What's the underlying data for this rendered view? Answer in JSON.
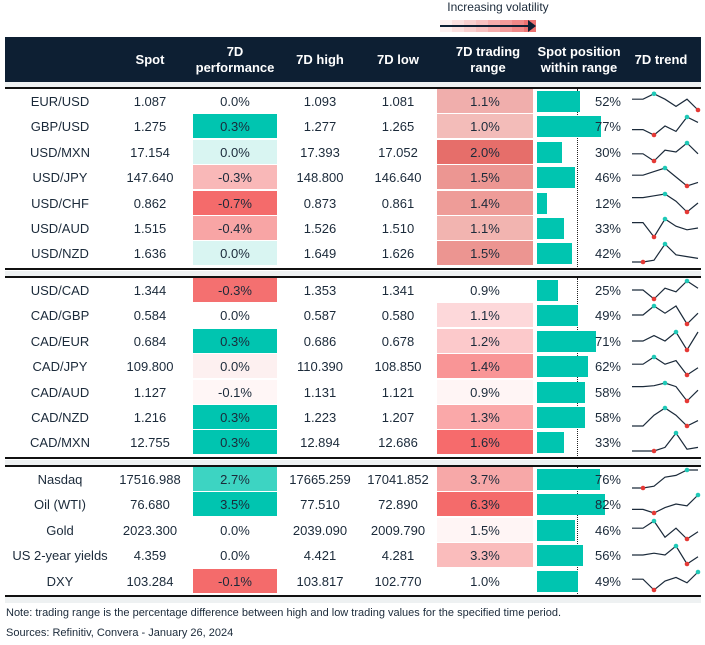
{
  "legend": {
    "label": "Increasing volatility",
    "colors": [
      "#fdf0f0",
      "#fbe0e0",
      "#f9d0d0",
      "#f7c0c0",
      "#f4acac",
      "#f29a9a",
      "#ef8888",
      "#ec7272"
    ]
  },
  "header": {
    "spot": "Spot",
    "perf": "7D performance",
    "high": "7D high",
    "low": "7D low",
    "range": "7D trading range",
    "position": "Spot position within range",
    "trend": "7D trend"
  },
  "colors": {
    "header_bg": "#0d1f33",
    "bar": "#00c5b0",
    "max_dot": "#1fc9b7",
    "min_dot": "#e53935"
  },
  "groups": [
    [
      {
        "name": "EUR/USD",
        "spot": "1.087",
        "perf": "0.0%",
        "perfColor": "#ffffff",
        "high": "1.093",
        "low": "1.081",
        "range": "1.1%",
        "rangeColor": "#f0aeac",
        "pos": 52,
        "posLabel": "52%",
        "trend": [
          0.6,
          0.6,
          0.9,
          0.6,
          0.2,
          0.6,
          0.0
        ]
      },
      {
        "name": "GBP/USD",
        "spot": "1.275",
        "perf": "0.3%",
        "perfColor": "#00c5b0",
        "high": "1.277",
        "low": "1.265",
        "range": "1.0%",
        "rangeColor": "#f3bcb9",
        "pos": 77,
        "posLabel": "77%",
        "trend": [
          0.3,
          0.3,
          0.0,
          0.5,
          0.2,
          1.0,
          0.7
        ]
      },
      {
        "name": "USD/MXN",
        "spot": "17.154",
        "perf": "0.0%",
        "perfColor": "#d9f5f2",
        "high": "17.393",
        "low": "17.052",
        "range": "2.0%",
        "rangeColor": "#e66e6a",
        "pos": 30,
        "posLabel": "30%",
        "trend": [
          0.4,
          0.4,
          0.0,
          0.6,
          0.5,
          1.0,
          0.4
        ]
      },
      {
        "name": "USD/JPY",
        "spot": "147.640",
        "perf": "-0.3%",
        "perfColor": "#f9b8b8",
        "high": "148.800",
        "low": "146.640",
        "range": "1.5%",
        "rangeColor": "#ec9692",
        "pos": 46,
        "posLabel": "46%",
        "trend": [
          0.6,
          0.6,
          0.8,
          1.0,
          0.5,
          0.0,
          0.2
        ]
      },
      {
        "name": "USD/CHF",
        "spot": "0.862",
        "perf": "-0.7%",
        "perfColor": "#f46b6b",
        "high": "0.873",
        "low": "0.861",
        "range": "1.4%",
        "rangeColor": "#ee9c98",
        "pos": 12,
        "posLabel": "12%",
        "trend": [
          0.8,
          0.8,
          0.9,
          1.0,
          0.6,
          0.0,
          0.5
        ]
      },
      {
        "name": "USD/AUD",
        "spot": "1.515",
        "perf": "-0.4%",
        "perfColor": "#f8a5a5",
        "high": "1.526",
        "low": "1.510",
        "range": "1.1%",
        "rangeColor": "#f2b4b0",
        "pos": 33,
        "posLabel": "33%",
        "trend": [
          0.8,
          0.8,
          0.0,
          1.0,
          0.6,
          0.4,
          0.5
        ]
      },
      {
        "name": "USD/NZD",
        "spot": "1.636",
        "perf": "0.0%",
        "perfColor": "#d9f5f2",
        "high": "1.649",
        "low": "1.626",
        "range": "1.5%",
        "rangeColor": "#ec9591",
        "pos": 42,
        "posLabel": "42%",
        "trend": [
          0.0,
          0.0,
          0.1,
          1.0,
          0.4,
          0.3,
          0.2
        ]
      }
    ],
    [
      {
        "name": "USD/CAD",
        "spot": "1.344",
        "perf": "-0.3%",
        "perfColor": "#f47070",
        "high": "1.353",
        "low": "1.341",
        "range": "0.9%",
        "rangeColor": "#ffffff",
        "pos": 25,
        "posLabel": "25%",
        "trend": [
          0.5,
          0.5,
          0.0,
          0.6,
          0.4,
          1.0,
          0.6
        ]
      },
      {
        "name": "CAD/GBP",
        "spot": "0.584",
        "perf": "0.0%",
        "perfColor": "#ffffff",
        "high": "0.587",
        "low": "0.580",
        "range": "1.1%",
        "rangeColor": "#fdd8da",
        "pos": 49,
        "posLabel": "49%",
        "trend": [
          0.5,
          0.5,
          1.0,
          0.6,
          1.0,
          0.0,
          0.6
        ]
      },
      {
        "name": "CAD/EUR",
        "spot": "0.684",
        "perf": "0.3%",
        "perfColor": "#00c5b0",
        "high": "0.686",
        "low": "0.678",
        "range": "1.2%",
        "rangeColor": "#fcc9cb",
        "pos": 71,
        "posLabel": "71%",
        "trend": [
          0.5,
          0.5,
          0.8,
          0.5,
          1.0,
          0.0,
          1.0
        ]
      },
      {
        "name": "CAD/JPY",
        "spot": "109.800",
        "perf": "0.0%",
        "perfColor": "#fdf0f0",
        "high": "110.390",
        "low": "108.850",
        "range": "1.4%",
        "rangeColor": "#f99596",
        "pos": 62,
        "posLabel": "62%",
        "trend": [
          0.6,
          0.6,
          1.0,
          0.6,
          0.8,
          0.0,
          0.4
        ]
      },
      {
        "name": "CAD/AUD",
        "spot": "1.127",
        "perf": "-0.1%",
        "perfColor": "#fff6f6",
        "high": "1.131",
        "low": "1.121",
        "range": "0.9%",
        "rangeColor": "#fff5f5",
        "pos": 58,
        "posLabel": "58%",
        "trend": [
          0.8,
          0.8,
          0.85,
          1.0,
          0.8,
          0.0,
          0.6
        ]
      },
      {
        "name": "CAD/NZD",
        "spot": "1.216",
        "perf": "0.3%",
        "perfColor": "#00c5b0",
        "high": "1.223",
        "low": "1.207",
        "range": "1.3%",
        "rangeColor": "#faa8a9",
        "pos": 58,
        "posLabel": "58%",
        "trend": [
          0.0,
          0.0,
          0.6,
          1.0,
          0.6,
          0.0,
          0.3
        ]
      },
      {
        "name": "CAD/MXN",
        "spot": "12.755",
        "perf": "0.3%",
        "perfColor": "#00c5b0",
        "high": "12.894",
        "low": "12.686",
        "range": "1.6%",
        "rangeColor": "#f66b6c",
        "pos": 33,
        "posLabel": "33%",
        "trend": [
          0.0,
          0.0,
          0.0,
          0.2,
          1.0,
          0.1,
          0.2
        ]
      }
    ],
    [
      {
        "name": "Nasdaq",
        "spot": "17516.988",
        "perf": "2.7%",
        "perfColor": "#3dd4c2",
        "high": "17665.259",
        "low": "17041.852",
        "range": "3.7%",
        "rangeColor": "#f7a8a8",
        "pos": 76,
        "posLabel": "76%",
        "trend": [
          0.0,
          0.0,
          0.1,
          0.6,
          0.7,
          1.0,
          1.0
        ]
      },
      {
        "name": "Oil (WTI)",
        "spot": "76.680",
        "perf": "3.5%",
        "perfColor": "#00c5b0",
        "high": "77.510",
        "low": "72.890",
        "range": "6.3%",
        "rangeColor": "#f46b6b",
        "pos": 82,
        "posLabel": "82%",
        "trend": [
          0.2,
          0.2,
          0.0,
          0.3,
          0.5,
          0.4,
          1.0
        ]
      },
      {
        "name": "Gold",
        "spot": "2023.300",
        "perf": "0.0%",
        "perfColor": "#ffffff",
        "high": "2039.090",
        "low": "2009.790",
        "range": "1.5%",
        "rangeColor": "#fff5f5",
        "pos": 46,
        "posLabel": "46%",
        "trend": [
          0.6,
          0.6,
          1.0,
          0.1,
          0.6,
          0.0,
          0.4
        ]
      },
      {
        "name": "US 2-year yields",
        "spot": "4.359",
        "perf": "0.0%",
        "perfColor": "#ffffff",
        "high": "4.421",
        "low": "4.281",
        "range": "3.3%",
        "rangeColor": "#fabcbc",
        "pos": 56,
        "posLabel": "56%",
        "trend": [
          0.5,
          0.5,
          0.6,
          0.5,
          1.0,
          0.0,
          0.4
        ]
      },
      {
        "name": "DXY",
        "spot": "103.284",
        "perf": "-0.1%",
        "perfColor": "#f46b6b",
        "high": "103.817",
        "low": "102.770",
        "range": "1.0%",
        "rangeColor": "#ffffff",
        "pos": 49,
        "posLabel": "49%",
        "trend": [
          0.6,
          0.6,
          0.0,
          0.5,
          0.7,
          0.4,
          1.0
        ]
      }
    ]
  ],
  "footer": {
    "note": "Note: trading range is the percentage difference between high and low trading values for the specified time period.",
    "sources": "Sources: Refinitiv, Convera - January 26, 2024"
  }
}
